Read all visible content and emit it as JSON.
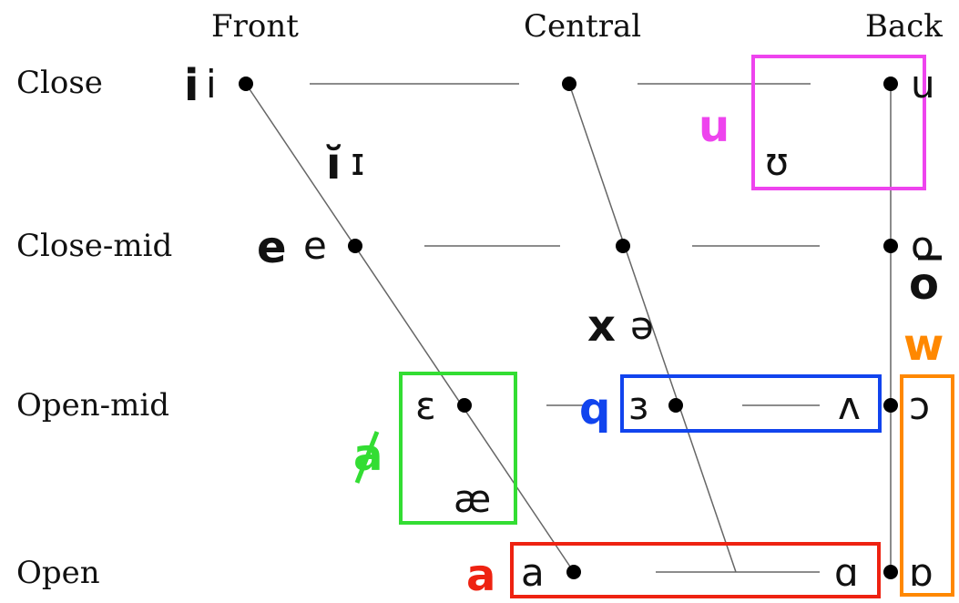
{
  "columns": {
    "front": "Front",
    "central": "Central",
    "back": "Back"
  },
  "rows": {
    "close": "Close",
    "close_mid": "Close-mid",
    "open_mid": "Open-mid",
    "open": "Open"
  },
  "ipa": {
    "i": "i",
    "I": "ɪ",
    "e": "e",
    "schwa": "ə",
    "u": "u",
    "U": "ʊ",
    "o": "o",
    "E": "ɛ",
    "ae": "æ",
    "rev_e": "ɜ",
    "caret": "ʌ",
    "open_o": "ɔ",
    "a": "a",
    "script_a": "ɑ",
    "turned_script_a": "ɒ"
  },
  "transcriptions": {
    "i": "i",
    "I": "ĭ",
    "e": "e",
    "schwa": "x",
    "o": "o",
    "u": "u",
    "w": "w",
    "q": "q",
    "a": "a",
    "a_struck": "a"
  },
  "colors": {
    "u_box": "#ee44ee",
    "ae_box": "#33dd33",
    "q_box": "#1144ee",
    "w_box": "#ff8800",
    "a_box": "#ee2211"
  }
}
